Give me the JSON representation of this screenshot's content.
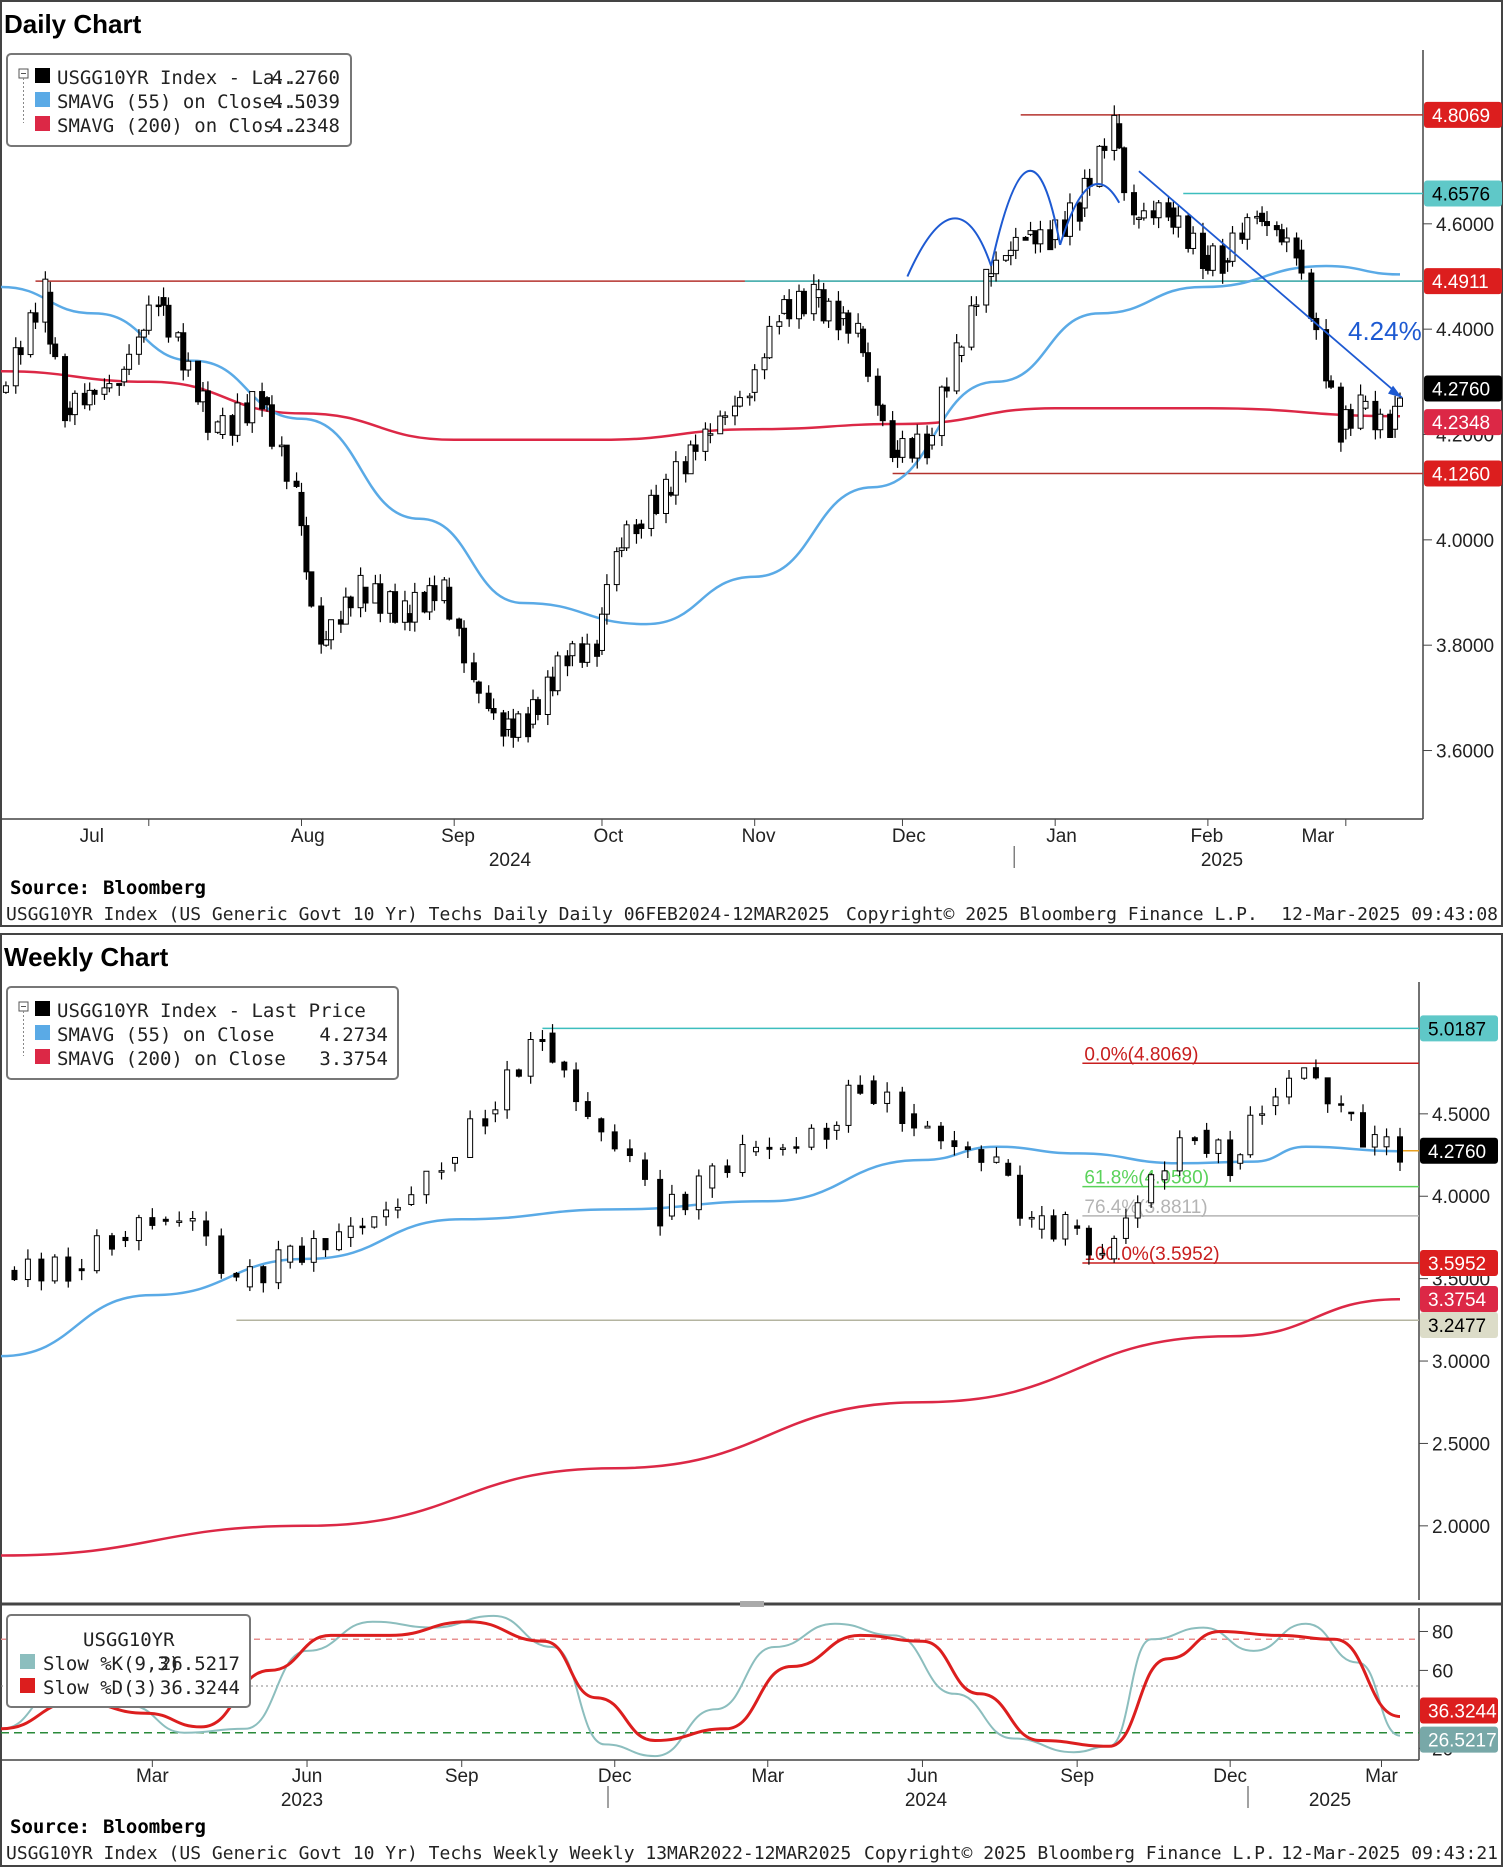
{
  "colors": {
    "price": "#000000",
    "sma55": "#5aaae6",
    "sma200": "#dc2846",
    "resistance": "#b4322d",
    "support_cyan": "#3cbebe",
    "trend": "#1e5ad2",
    "fib0": "#c81e1e",
    "fib618": "#5ad25a",
    "fib764": "#b4b4b4",
    "fib100": "#c81e1e",
    "slowK": "#8cbebe",
    "slowD": "#dc1e1e"
  },
  "daily": {
    "heading": "Daily Chart",
    "legend": [
      {
        "swatch": "#000000",
        "label": "USGG10YR Index - La...",
        "value": "4.2760"
      },
      {
        "swatch": "#5aaae6",
        "label": "SMAVG (55)  on Close...",
        "value": "4.5039"
      },
      {
        "swatch": "#dc2846",
        "label": "SMAVG (200)  on Clos...",
        "value": "4.2348"
      }
    ],
    "trend_label": "4.24%",
    "tags": [
      {
        "text": "4.8069",
        "bg": "#dc1e1e",
        "fg": "#ffffff",
        "value": 4.8069
      },
      {
        "text": "4.6576",
        "bg": "#5fc8c8",
        "fg": "#000000",
        "value": 4.6576
      },
      {
        "text": "4.4911",
        "bg": "#dc1e1e",
        "fg": "#ffffff",
        "value": 4.4911
      },
      {
        "text": "4.2760",
        "bg": "#000000",
        "fg": "#ffffff",
        "value": 4.276
      },
      {
        "text": "4.2348",
        "bg": "#dc2846",
        "fg": "#ffffff",
        "value": 4.2348
      },
      {
        "text": "4.1260",
        "bg": "#dc1e1e",
        "fg": "#ffffff",
        "value": 4.126
      }
    ],
    "months": [
      "Jul",
      "Aug",
      "Sep",
      "Oct",
      "Nov",
      "Dec",
      "Jan",
      "Feb",
      "Mar"
    ],
    "years": [
      "2024",
      "2025"
    ],
    "source_label": "Source:",
    "source_value": "Bloomberg",
    "footer_left": "USGG10YR Index (US Generic Govt 10 Yr) Techs Daily  Daily 06FEB2024-12MAR2025",
    "footer_mid": "Copyright© 2025 Bloomberg Finance L.P.",
    "footer_right": "12-Mar-2025 09:43:08"
  },
  "weekly": {
    "heading": "Weekly Chart",
    "legend": [
      {
        "swatch": "#000000",
        "label": "USGG10YR Index - Last Price",
        "value": ""
      },
      {
        "swatch": "#5aaae6",
        "label": "SMAVG (55)  on Close",
        "value": "4.2734"
      },
      {
        "swatch": "#dc2846",
        "label": "SMAVG (200)  on Close",
        "value": "3.3754"
      }
    ],
    "fib_labels": [
      "0.0%(4.8069)",
      "61.8%(4.0580)",
      "76.4%(3.8811)",
      "100.0%(3.5952)"
    ],
    "tags": [
      {
        "text": "5.0187",
        "bg": "#5fc8c8",
        "fg": "#000000",
        "value": 5.0187
      },
      {
        "text": "4.2760",
        "bg": "#000000",
        "fg": "#ffffff",
        "value": 4.276
      },
      {
        "text": "3.5952",
        "bg": "#dc1e1e",
        "fg": "#ffffff",
        "value": 3.5952
      },
      {
        "text": "3.3754",
        "bg": "#dc2846",
        "fg": "#ffffff",
        "value": 3.3754
      },
      {
        "text": "3.2477",
        "bg": "#dcdcc8",
        "fg": "#000000",
        "value": 3.2477
      }
    ],
    "stoch_legend": {
      "title": "USGG10YR",
      "k_label": "Slow %K(9,3)",
      "k_value": "26.5217",
      "d_label": "Slow %D(3)",
      "d_value": "36.3244"
    },
    "stoch_tags": [
      {
        "text": "36.3244",
        "bg": "#dc1e1e",
        "fg": "#ffffff",
        "value": 36.3244
      },
      {
        "text": "26.5217",
        "bg": "#78a8a8",
        "fg": "#ffffff",
        "value": 26.5217
      }
    ],
    "months": [
      "Mar",
      "Jun",
      "Sep",
      "Dec",
      "Mar",
      "Jun",
      "Sep",
      "Dec",
      "Mar"
    ],
    "years": [
      "2023",
      "2024",
      "2025"
    ],
    "source_label": "Source:",
    "source_value": "Bloomberg",
    "footer_left": "USGG10YR Index (US Generic Govt 10 Yr) Techs Weekly  Weekly 13MAR2022-12MAR2025",
    "footer_mid": "Copyright© 2025 Bloomberg Finance L.P.",
    "footer_right": "12-Mar-2025 09:43:21"
  },
  "chart_data": [
    {
      "type": "line",
      "title": "Daily Chart",
      "x_start": "2024-06-01",
      "x_end": "2025-03-12",
      "y_ticks": [
        3.6,
        3.8,
        4.0,
        4.2,
        4.4,
        4.6
      ],
      "y_tick_labels": [
        "3.6000",
        "3.8000",
        "4.0000",
        "4.2000",
        "4.4000",
        "4.6000"
      ],
      "ylim": [
        3.47,
        4.93
      ],
      "horizontal_levels": [
        4.8069,
        4.6576,
        4.4911,
        4.126
      ],
      "series": [
        {
          "name": "USGG10YR Index",
          "x": [
            "2024-06-01",
            "2024-06-10",
            "2024-06-14",
            "2024-06-25",
            "2024-07-03",
            "2024-07-15",
            "2024-07-24",
            "2024-07-31",
            "2024-08-05",
            "2024-08-13",
            "2024-08-22",
            "2024-08-30",
            "2024-09-05",
            "2024-09-11",
            "2024-09-16",
            "2024-09-24",
            "2024-09-30",
            "2024-10-04",
            "2024-10-08",
            "2024-10-14",
            "2024-10-22",
            "2024-10-31",
            "2024-11-06",
            "2024-11-13",
            "2024-11-18",
            "2024-11-22",
            "2024-11-29",
            "2024-12-06",
            "2024-12-12",
            "2024-12-18",
            "2024-12-26",
            "2024-12-31",
            "2025-01-06",
            "2025-01-13",
            "2025-01-17",
            "2025-01-24",
            "2025-01-31",
            "2025-02-04",
            "2025-02-11",
            "2025-02-19",
            "2025-02-28",
            "2025-03-04",
            "2025-03-10",
            "2025-03-12"
          ],
          "values": [
            4.28,
            4.47,
            4.25,
            4.3,
            4.46,
            4.2,
            4.27,
            4.09,
            3.8,
            3.91,
            3.86,
            3.91,
            3.73,
            3.64,
            3.65,
            3.78,
            3.79,
            3.98,
            4.03,
            4.09,
            4.2,
            4.28,
            4.43,
            4.46,
            4.42,
            4.4,
            4.17,
            4.18,
            4.35,
            4.5,
            4.58,
            4.57,
            4.63,
            4.79,
            4.61,
            4.63,
            4.54,
            4.53,
            4.62,
            4.55,
            4.21,
            4.25,
            4.21,
            4.276
          ]
        },
        {
          "name": "SMAVG (55)",
          "x": [
            "2024-06-01",
            "2024-06-20",
            "2024-07-10",
            "2024-08-01",
            "2024-08-25",
            "2024-09-15",
            "2024-10-10",
            "2024-11-01",
            "2024-11-25",
            "2024-12-20",
            "2025-01-10",
            "2025-01-31",
            "2025-02-25",
            "2025-03-12"
          ],
          "values": [
            4.48,
            4.43,
            4.34,
            4.23,
            4.04,
            3.88,
            3.84,
            3.93,
            4.1,
            4.3,
            4.43,
            4.48,
            4.52,
            4.5039
          ]
        },
        {
          "name": "SMAVG (200)",
          "x": [
            "2024-06-01",
            "2024-07-01",
            "2024-08-01",
            "2024-09-01",
            "2024-10-01",
            "2024-11-01",
            "2024-12-01",
            "2025-01-01",
            "2025-02-01",
            "2025-03-12"
          ],
          "values": [
            4.32,
            4.3,
            4.24,
            4.19,
            4.19,
            4.21,
            4.22,
            4.25,
            4.25,
            4.2348
          ]
        }
      ]
    },
    {
      "type": "line",
      "title": "Weekly Chart",
      "x_start": "2022-12-01",
      "x_end": "2025-03-12",
      "y_ticks": [
        2.0,
        2.5,
        3.0,
        3.5,
        4.0,
        4.5
      ],
      "y_tick_labels": [
        "2.0000",
        "2.5000",
        "3.0000",
        "3.5000",
        "4.0000",
        "4.5000"
      ],
      "ylim": [
        1.55,
        5.3
      ],
      "horizontal_levels": [
        5.0187,
        4.8069,
        4.058,
        3.8811,
        3.5952,
        3.2477
      ],
      "series": [
        {
          "name": "USGG10YR Index",
          "x": [
            "2022-12-01",
            "2023-01-10",
            "2023-02-05",
            "2023-03-01",
            "2023-03-25",
            "2023-04-20",
            "2023-05-15",
            "2023-06-20",
            "2023-07-25",
            "2023-08-20",
            "2023-09-15",
            "2023-10-19",
            "2023-11-15",
            "2023-12-10",
            "2023-12-28",
            "2024-01-20",
            "2024-02-15",
            "2024-03-10",
            "2024-04-05",
            "2024-04-25",
            "2024-05-20",
            "2024-06-20",
            "2024-07-15",
            "2024-08-05",
            "2024-08-25",
            "2024-09-16",
            "2024-10-15",
            "2024-11-10",
            "2024-12-01",
            "2024-12-20",
            "2025-01-14",
            "2025-02-05",
            "2025-02-25",
            "2025-03-12"
          ],
          "values": [
            3.55,
            3.56,
            3.75,
            3.86,
            3.85,
            3.45,
            3.6,
            3.75,
            3.95,
            4.2,
            4.5,
            4.99,
            4.47,
            4.22,
            3.88,
            4.05,
            4.27,
            4.3,
            4.4,
            4.7,
            4.5,
            4.3,
            4.2,
            3.8,
            3.82,
            3.62,
            4.1,
            4.4,
            4.2,
            4.55,
            4.78,
            4.51,
            4.3,
            4.276
          ]
        },
        {
          "name": "SMAVG (55)",
          "x": [
            "2022-12-01",
            "2023-03-01",
            "2023-06-01",
            "2023-09-01",
            "2023-12-01",
            "2024-03-01",
            "2024-06-01",
            "2024-07-15",
            "2024-09-01",
            "2024-11-01",
            "2024-12-15",
            "2025-01-15",
            "2025-03-12"
          ],
          "values": [
            3.03,
            3.4,
            3.62,
            3.86,
            3.92,
            3.97,
            4.22,
            4.3,
            4.26,
            4.2,
            4.21,
            4.3,
            4.2734
          ]
        },
        {
          "name": "SMAVG (200)",
          "x": [
            "2022-12-01",
            "2023-06-01",
            "2023-12-01",
            "2024-06-01",
            "2024-12-01",
            "2025-03-12"
          ],
          "values": [
            1.82,
            2.0,
            2.35,
            2.75,
            3.15,
            3.3754
          ]
        }
      ]
    },
    {
      "type": "line",
      "title": "USGG10YR",
      "x_start": "2022-12-01",
      "x_end": "2025-03-12",
      "y_ticks": [
        20,
        60,
        80
      ],
      "y_tick_labels": [
        "20",
        "60",
        "80"
      ],
      "ylim": [
        15,
        90
      ],
      "horizontal_levels": [
        76,
        52,
        28
      ],
      "series": [
        {
          "name": "Slow %K(9,3)",
          "x": [
            "2022-12-01",
            "2023-01-10",
            "2023-02-15",
            "2023-03-20",
            "2023-04-25",
            "2023-06-01",
            "2023-07-10",
            "2023-08-15",
            "2023-09-20",
            "2023-10-25",
            "2023-11-25",
            "2023-12-25",
            "2024-01-30",
            "2024-03-05",
            "2024-04-10",
            "2024-05-15",
            "2024-06-20",
            "2024-07-25",
            "2024-08-30",
            "2024-09-20",
            "2024-10-15",
            "2024-11-15",
            "2024-12-15",
            "2025-01-15",
            "2025-02-15",
            "2025-03-12"
          ],
          "values": [
            30,
            55,
            42,
            28,
            30,
            70,
            85,
            82,
            88,
            72,
            22,
            16,
            40,
            72,
            84,
            78,
            48,
            25,
            18,
            21,
            76,
            82,
            70,
            84,
            64,
            26.5217
          ]
        },
        {
          "name": "Slow %D(3)",
          "x": [
            "2022-12-01",
            "2023-01-15",
            "2023-02-25",
            "2023-03-30",
            "2023-05-10",
            "2023-06-15",
            "2023-07-20",
            "2023-09-05",
            "2023-10-20",
            "2023-11-20",
            "2023-12-25",
            "2024-02-05",
            "2024-03-15",
            "2024-04-25",
            "2024-06-01",
            "2024-07-05",
            "2024-08-10",
            "2024-09-20",
            "2024-10-25",
            "2024-11-25",
            "2024-12-30",
            "2025-02-01",
            "2025-03-12"
          ],
          "values": [
            30,
            44,
            38,
            31,
            60,
            78,
            78,
            85,
            75,
            46,
            24,
            30,
            62,
            78,
            75,
            48,
            24,
            21,
            66,
            80,
            78,
            76,
            36.3244
          ]
        }
      ]
    }
  ]
}
